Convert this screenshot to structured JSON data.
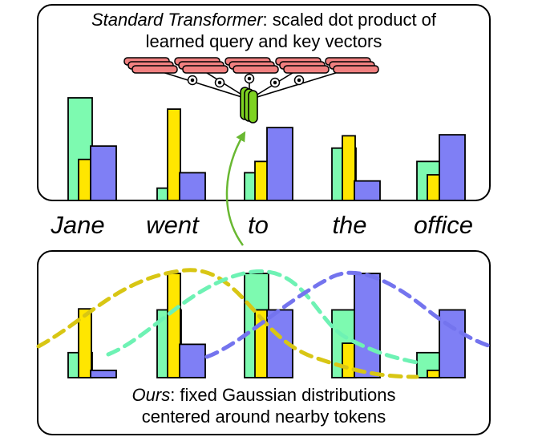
{
  "top_panel": {
    "caption_emph": "Standard Transformer",
    "caption_rest": ": scaled dot product of",
    "caption_line2": "learned query and key vectors"
  },
  "tokens": [
    "Jane",
    "went",
    "to",
    "the",
    "office"
  ],
  "bottom_panel": {
    "caption_emph": "Ours",
    "caption_rest": ": fixed Gaussian distributions",
    "caption_line2": "centered around nearby tokens"
  },
  "colors": {
    "green": "#7dfab0",
    "yellow": "#ffe600",
    "blue": "#7f7ff5",
    "key_vector": "#f08080",
    "query_vector": "#7ed321",
    "gaussian_yellow": "#d8c614",
    "gaussian_green": "#6ef2b4",
    "gaussian_blue": "#7474ee",
    "arrow": "#69b832"
  },
  "top_bars": [
    {
      "token": "Jane",
      "green": 1.0,
      "yellow": 0.4,
      "blue": 0.53
    },
    {
      "token": "went",
      "green": 0.12,
      "yellow": 0.89,
      "blue": 0.27
    },
    {
      "token": "to",
      "green": 0.27,
      "yellow": 0.38,
      "blue": 0.71
    },
    {
      "token": "the",
      "green": 0.51,
      "yellow": 0.63,
      "blue": 0.19
    },
    {
      "token": "office",
      "green": 0.38,
      "yellow": 0.25,
      "blue": 0.64
    }
  ],
  "bottom_bars": [
    {
      "token": "Jane",
      "green": 0.24,
      "yellow": 0.66,
      "blue": 0.07
    },
    {
      "token": "went",
      "green": 0.65,
      "yellow": 1.0,
      "blue": 0.32
    },
    {
      "token": "to",
      "green": 1.0,
      "yellow": 0.65,
      "blue": 0.65
    },
    {
      "token": "the",
      "green": 0.65,
      "yellow": 0.33,
      "blue": 1.0
    },
    {
      "token": "office",
      "green": 0.24,
      "yellow": 0.07,
      "blue": 0.65
    }
  ]
}
